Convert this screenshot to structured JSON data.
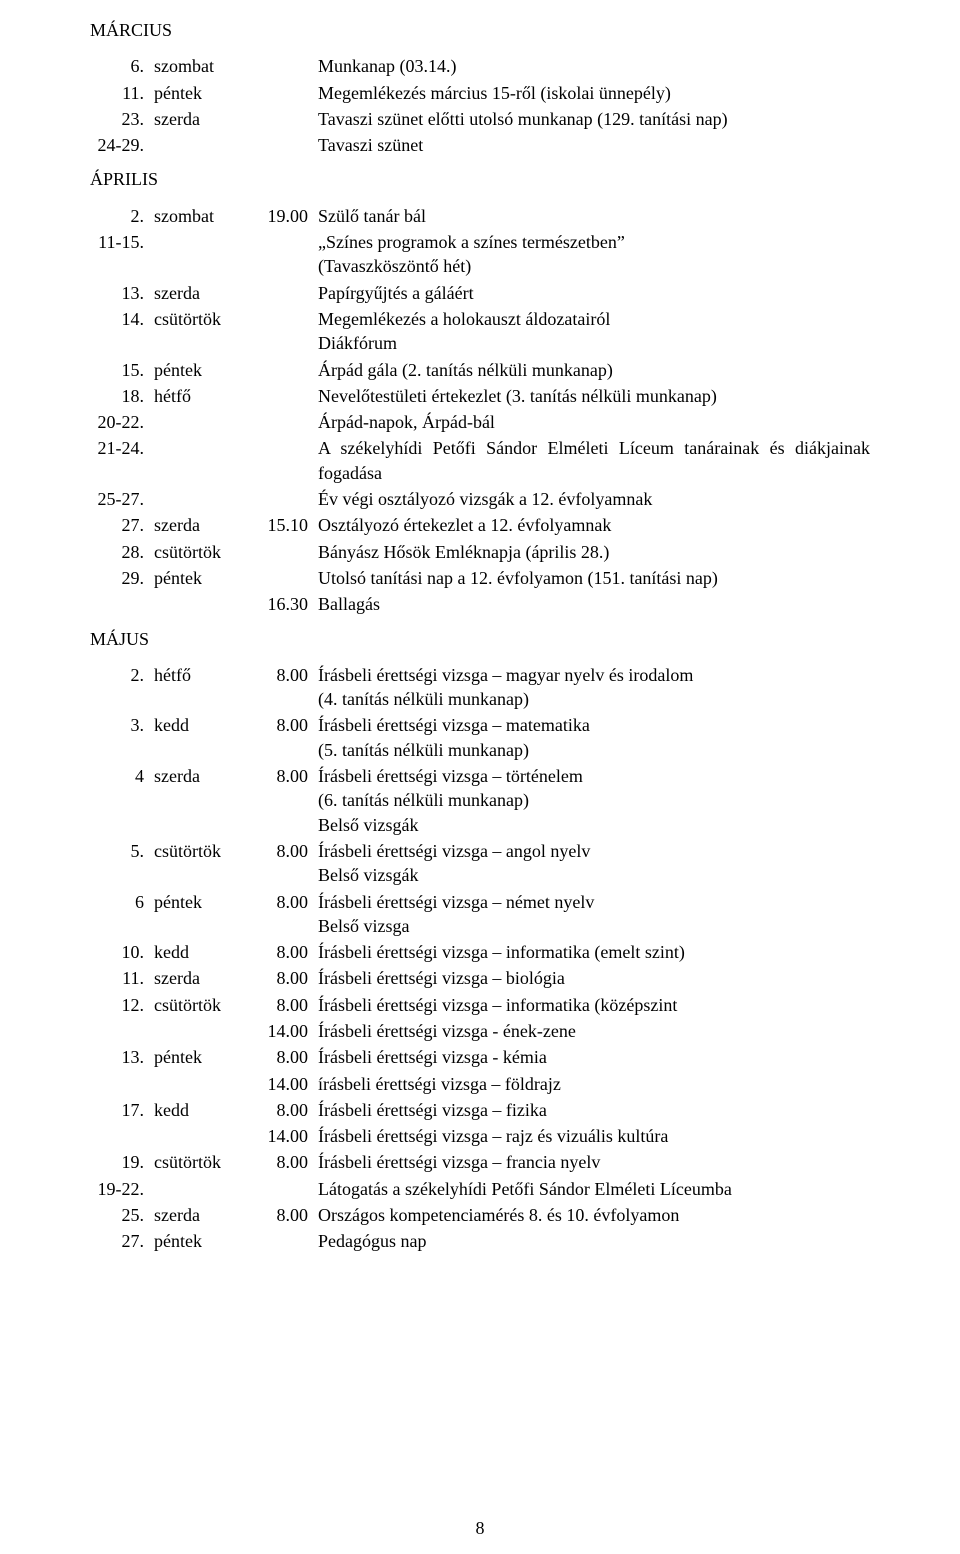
{
  "sections": [
    {
      "heading": "MÁRCIUS",
      "heading_indent": 0,
      "rows": [
        {
          "date": "6.",
          "day": "szombat",
          "time": "",
          "lines": [
            "Munkanap (03.14.)"
          ]
        },
        {
          "date": "11.",
          "day": "péntek",
          "time": "",
          "lines": [
            "Megemlékezés március 15-ről (iskolai ünnepély)"
          ]
        },
        {
          "date": "23.",
          "day": "szerda",
          "time": "",
          "lines": [
            "Tavaszi szünet előtti utolsó munkanap (129. tanítási nap)"
          ]
        },
        {
          "date": "24-29.",
          "day": "",
          "time": "",
          "lines": [
            "Tavaszi szünet"
          ]
        }
      ]
    },
    {
      "heading": "ÁPRILIS",
      "heading_indent": 0,
      "rows": [
        {
          "date": "2.",
          "day": "szombat",
          "time": "19.00",
          "lines": [
            "Szülő tanár bál"
          ]
        },
        {
          "date": "11-15.",
          "day": "",
          "time": "",
          "lines": [
            "„Színes programok a színes természetben”",
            "(Tavaszköszöntő hét)"
          ]
        },
        {
          "date": "13.",
          "day": "szerda",
          "time": "",
          "lines": [
            "Papírgyűjtés a gáláért"
          ]
        },
        {
          "date": "14.",
          "day": "csütörtök",
          "time": "",
          "lines": [
            "Megemlékezés a holokauszt áldozatairól",
            "Diákfórum"
          ]
        },
        {
          "date": "15.",
          "day": "péntek",
          "time": "",
          "lines": [
            "Árpád gála (2. tanítás nélküli munkanap)"
          ]
        },
        {
          "date": "18.",
          "day": "hétfő",
          "time": "",
          "lines": [
            "Nevelőtestületi értekezlet (3. tanítás nélküli munkanap)"
          ]
        },
        {
          "date": "20-22.",
          "day": "",
          "time": "",
          "lines": [
            "Árpád-napok, Árpád-bál"
          ]
        },
        {
          "date": "21-24.",
          "day": "",
          "time": "",
          "justify": true,
          "lines": [
            "A székelyhídi Petőfi Sándor Elméleti Líceum tanárainak és diákjainak fogadása"
          ]
        },
        {
          "date": "25-27.",
          "day": "",
          "time": "",
          "lines": [
            "Év végi osztályozó vizsgák a 12. évfolyamnak"
          ]
        },
        {
          "date": "27.",
          "day": "szerda",
          "time": "15.10",
          "lines": [
            "Osztályozó értekezlet a 12. évfolyamnak"
          ]
        },
        {
          "date": "28.",
          "day": "csütörtök",
          "time": "",
          "lines": [
            "Bányász Hősök Emléknapja (április 28.)"
          ]
        },
        {
          "date": "29.",
          "day": "péntek",
          "time": "",
          "lines": [
            "Utolsó tanítási nap a 12. évfolyamon (151. tanítási nap)"
          ]
        },
        {
          "date": "",
          "day": "",
          "time": "16.30",
          "lines": [
            "Ballagás"
          ]
        }
      ]
    },
    {
      "heading": "MÁJUS",
      "heading_indent": 0,
      "rows": [
        {
          "date": "2.",
          "day": "hétfő",
          "time": "8.00",
          "lines": [
            "Írásbeli érettségi vizsga – magyar nyelv és irodalom",
            "(4. tanítás nélküli munkanap)"
          ]
        },
        {
          "date": "3.",
          "day": "kedd",
          "time": "8.00",
          "lines": [
            "Írásbeli érettségi vizsga – matematika",
            "(5. tanítás nélküli munkanap)"
          ]
        },
        {
          "date": "4",
          "day": "szerda",
          "time": "8.00",
          "lines": [
            "Írásbeli érettségi vizsga – történelem",
            "(6. tanítás nélküli munkanap)",
            "Belső vizsgák"
          ]
        },
        {
          "date": "5.",
          "day": "csütörtök",
          "time": "8.00",
          "lines": [
            "Írásbeli érettségi vizsga – angol nyelv",
            "Belső vizsgák"
          ]
        },
        {
          "date": "6",
          "day": "péntek",
          "time": "8.00",
          "lines": [
            "Írásbeli érettségi vizsga – német nyelv",
            "Belső vizsga"
          ]
        },
        {
          "date": "10.",
          "day": "kedd",
          "time": "8.00",
          "lines": [
            "Írásbeli érettségi vizsga – informatika (emelt szint)"
          ]
        },
        {
          "date": "11.",
          "day": "szerda",
          "time": "8.00",
          "lines": [
            "Írásbeli érettségi vizsga – biológia"
          ]
        },
        {
          "date": "12.",
          "day": "csütörtök",
          "time": "8.00",
          "lines": [
            "Írásbeli érettségi vizsga – informatika (középszint"
          ]
        },
        {
          "date": "",
          "day": "",
          "time": "14.00",
          "lines": [
            "Írásbeli érettségi vizsga - ének-zene"
          ]
        },
        {
          "date": "13.",
          "day": "péntek",
          "time": "8.00",
          "lines": [
            "Írásbeli érettségi vizsga - kémia"
          ]
        },
        {
          "date": "",
          "day": "",
          "time": "14.00",
          "lines": [
            "írásbeli érettségi vizsga – földrajz"
          ]
        },
        {
          "date": "17.",
          "day": "kedd",
          "time": "8.00",
          "lines": [
            "Írásbeli érettségi vizsga – fizika"
          ]
        },
        {
          "date": "",
          "day": "",
          "time": "14.00",
          "lines": [
            "Írásbeli érettségi vizsga – rajz és vizuális kultúra"
          ]
        },
        {
          "date": "19.",
          "day": "csütörtök",
          "time": "8.00",
          "lines": [
            "Írásbeli érettségi vizsga – francia nyelv"
          ]
        },
        {
          "date": "19-22.",
          "day": "",
          "time": "",
          "lines": [
            "Látogatás a székelyhídi Petőfi Sándor Elméleti Líceumba"
          ]
        },
        {
          "date": "25.",
          "day": "szerda",
          "time": "8.00",
          "lines": [
            "Országos kompetenciamérés 8. és 10. évfolyamon"
          ]
        },
        {
          "date": "27.",
          "day": "péntek",
          "time": "",
          "lines": [
            "Pedagógus nap"
          ]
        }
      ]
    }
  ],
  "page_number": "8"
}
